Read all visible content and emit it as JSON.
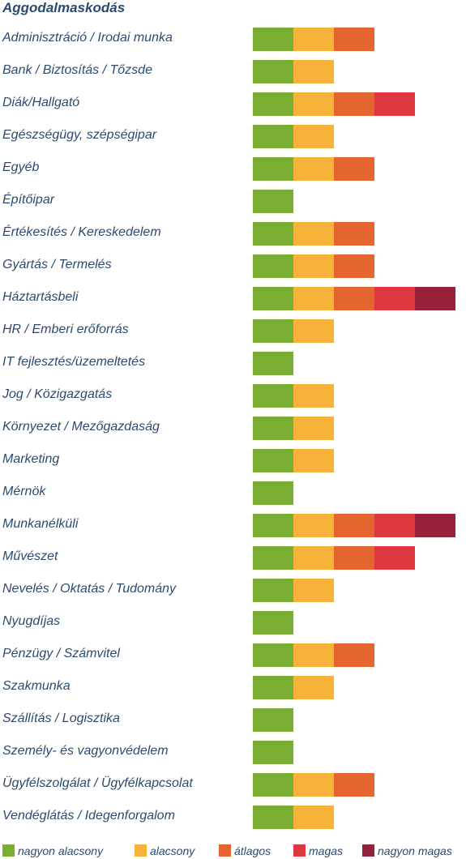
{
  "chart_data": {
    "type": "bar",
    "title": "Aggodalmaskodás",
    "categories": [
      "Adminisztráció / Irodai munka",
      "Bank / Biztosítás / Tőzsde",
      "Diák/Hallgató",
      "Egészségügy, szépségipar",
      "Egyéb",
      "Építőipar",
      "Értékesítés / Kereskedelem",
      "Gyártás / Termelés",
      "Háztartásbeli",
      "HR / Emberi erőforrás",
      "IT fejlesztés/üzemeltetés",
      "Jog / Közigazgatás",
      "Környezet / Mezőgazdaság",
      "Marketing",
      "Mérnök",
      "Munkanélküli",
      "Művészet",
      "Nevelés / Oktatás / Tudomány",
      "Nyugdíjas",
      "Pénzügy / Számvitel",
      "Szakmunka",
      "Szállítás / Logisztika",
      "Személy- és vagyonvédelem",
      "Ügyfélszolgálat / Ügyfélkapcsolat",
      "Vendéglátás / Idegenforgalom"
    ],
    "values": [
      3,
      2,
      4,
      2,
      3,
      1,
      3,
      3,
      5,
      2,
      1,
      2,
      2,
      2,
      1,
      5,
      4,
      2,
      1,
      3,
      2,
      1,
      1,
      3,
      2
    ],
    "levels": [
      {
        "name": "nagyon alacsony",
        "color": "#7aae32"
      },
      {
        "name": "alacsony",
        "color": "#f7b239"
      },
      {
        "name": "átlagos",
        "color": "#e5652e"
      },
      {
        "name": "magas",
        "color": "#dd3740"
      },
      {
        "name": "nagyon magas",
        "color": "#98213a"
      }
    ],
    "ylim": [
      0,
      5
    ],
    "legend_position": "bottom"
  }
}
